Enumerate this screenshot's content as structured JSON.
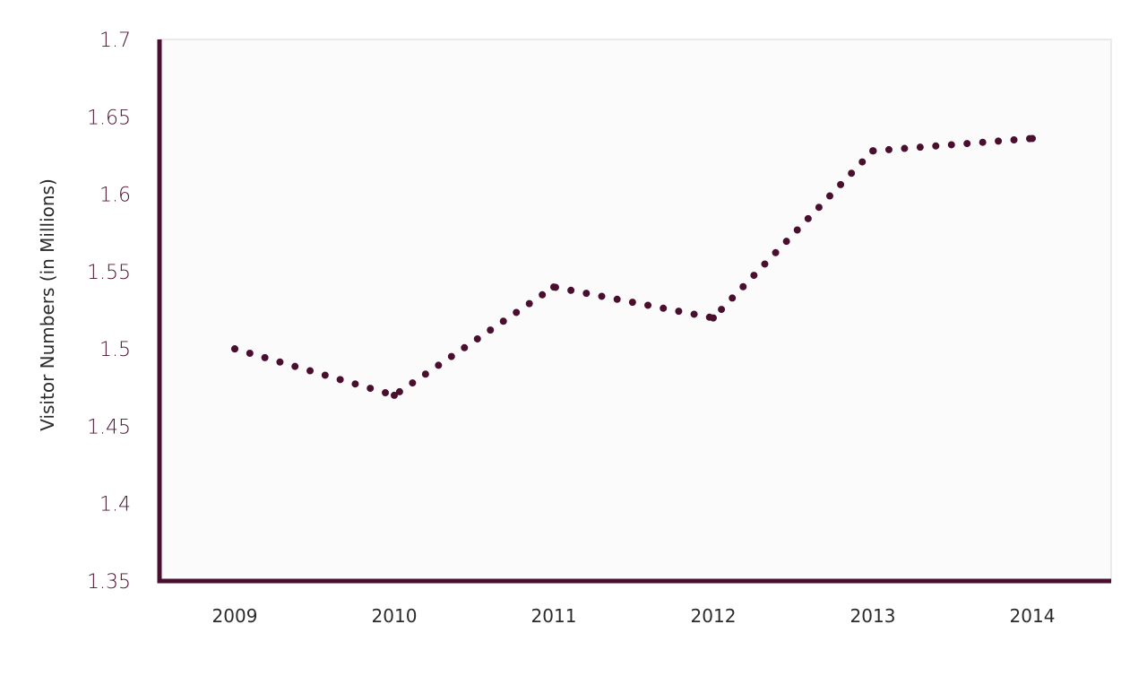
{
  "chart_data": {
    "type": "line",
    "title": "",
    "xlabel": "",
    "ylabel": "Visitor Numbers (in Millions)",
    "categories": [
      "2009",
      "2010",
      "2011",
      "2012",
      "2013",
      "2014"
    ],
    "y_ticks": [
      "1.35",
      "1.4",
      "1.45",
      "1.5",
      "1.55",
      "1.6",
      "1.65",
      "1.7"
    ],
    "ylim": [
      1.35,
      1.7
    ],
    "series": [
      {
        "values": [
          1.5,
          1.47,
          1.54,
          1.52,
          1.628,
          1.636
        ],
        "line_style": "dotted"
      }
    ],
    "grid": false,
    "colors": {
      "line": "#4a0f2e",
      "axis": "#4a0f2e",
      "plot_background": "#fcfbfc",
      "plot_border": "#e6e2e6",
      "y_tick_text": "#4a0f2e",
      "x_tick_text": "#2b2b2b",
      "axis_title_text": "#2b2b2b"
    }
  }
}
